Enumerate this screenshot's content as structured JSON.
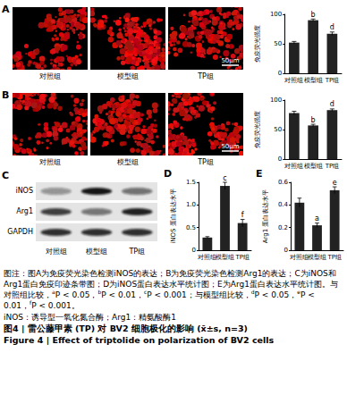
{
  "chart_data": [
    {
      "panel": "A",
      "type": "bar",
      "categories": [
        "对照组",
        "模型组",
        "TP组"
      ],
      "values": [
        52,
        90,
        67
      ],
      "errors": [
        2,
        2,
        3
      ],
      "annotations": [
        null,
        "b",
        "d"
      ],
      "ylabel": "免疫荧光强度",
      "ylim": [
        0,
        100
      ],
      "yticks": [
        0,
        50,
        100
      ],
      "color": "#222222",
      "grid": false
    },
    {
      "panel": "B",
      "type": "bar",
      "categories": [
        "对照组",
        "模型组",
        "TP组"
      ],
      "values": [
        78,
        57,
        83
      ],
      "errors": [
        3,
        2,
        2
      ],
      "annotations": [
        null,
        "b",
        "d"
      ],
      "ylabel": "免疫荧光强度",
      "ylim": [
        0,
        100
      ],
      "yticks": [
        0,
        50,
        100
      ],
      "color": "#222222",
      "grid": false
    },
    {
      "panel": "D",
      "type": "bar",
      "categories": [
        "对照组",
        "模型组",
        "TP组"
      ],
      "values": [
        0.28,
        1.42,
        0.6
      ],
      "errors": [
        0.02,
        0.08,
        0.08
      ],
      "annotations": [
        null,
        "c",
        "f"
      ],
      "ylabel": "iNOS 蛋白表达水平",
      "ylim": [
        0,
        1.5
      ],
      "yticks": [
        0,
        0.5,
        {
          "value": 1,
          "label": "1.0"
        },
        1.5
      ],
      "color": "#222222",
      "grid": false
    },
    {
      "panel": "E",
      "type": "bar",
      "categories": [
        "对照组",
        "模型组",
        "TP组"
      ],
      "values": [
        0.42,
        0.22,
        0.53
      ],
      "errors": [
        0.04,
        0.02,
        0.03
      ],
      "annotations": [
        null,
        "a",
        "e"
      ],
      "ylabel": "Arg1 蛋白表达水平",
      "ylim": [
        0,
        0.6
      ],
      "yticks": [
        0,
        0.2,
        0.4,
        0.6
      ],
      "color": "#222222",
      "grid": false
    }
  ],
  "images": [
    {
      "panel": "A",
      "labels": [
        "对照组",
        "模型组",
        "TP组"
      ],
      "scale_bar": "50μm"
    },
    {
      "panel": "B",
      "labels": [
        "对照组",
        "模型组",
        "TP组"
      ],
      "scale_bar": "50μm"
    }
  ],
  "blot": {
    "panel": "C",
    "rows": [
      "iNOS",
      "Arg1",
      "GAPDH"
    ],
    "lanes": [
      "对照组",
      "模型组",
      "TP组"
    ]
  },
  "caption": {
    "paragraphs": [
      [
        "图注：图A为免疫荧光染色检测iNOS的表达；B为免疫荧光染色检测Arg1的表达；C为iNOS和Arg1蛋白免疫印迹条带图；D为iNOS蛋白表达水平统计图；E为Arg1蛋白表达水平统计图。与对照组比较，",
        {
          "sup": "a"
        },
        "P < 0.05，",
        {
          "sup": "b"
        },
        "P < 0.01，",
        {
          "sup": "c"
        },
        "P < 0.001；与模型组比较，",
        {
          "sup": "d"
        },
        "P < 0.05，",
        {
          "sup": "e"
        },
        "P < 0.01，",
        {
          "sup": "f"
        },
        "P < 0.001。"
      ],
      [
        "iNOS：诱导型一氧化氮合酶；Arg1：精氨酸酶1"
      ]
    ],
    "title": "图4 | 雷公藤甲素 (TP) 对 BV2 细胞极化的影响 (x̄±s, n=3)",
    "title_en": "Figure 4 | Effect of triptolide on polarization of BV2 cells"
  }
}
